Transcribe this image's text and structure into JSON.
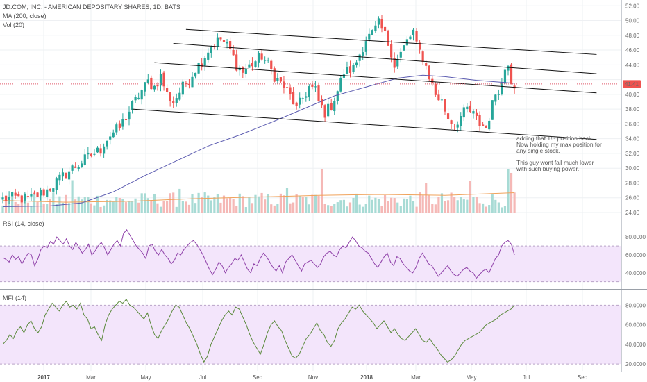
{
  "colors": {
    "up": "#26a69a",
    "down": "#ef5350",
    "ma": "#5b5bb0",
    "vol_ma": "#f0a25a",
    "rsi_line": "#8e3fa8",
    "rsi_band": "#f3e5fb",
    "mfi_line": "#5b8a3c",
    "mfi_band": "#f3e5fb",
    "grid": "#eef0f3",
    "channel": "#111111",
    "price_line": "#e0576a",
    "price_badge": "#ef5350"
  },
  "chart_data": [
    {
      "type": "candlestick",
      "name": "price-pane",
      "title": "JD.COM, INC. - AMERICAN DEPOSITARY SHARES, 1D, BATS",
      "indicators": [
        "MA (200, close)",
        "Vol (20)"
      ],
      "y_axis_side": "right",
      "ylim": [
        24,
        52.4
      ],
      "yticks": [
        "24.00",
        "26.00",
        "28.00",
        "30.00",
        "32.00",
        "34.00",
        "36.00",
        "38.00",
        "40.00",
        "42.00",
        "44.00",
        "46.00",
        "48.00",
        "50.00",
        "52.00"
      ],
      "last_price_label": "41.41",
      "last_price": 41.41,
      "xtick_labels": [
        "2017",
        "Mar",
        "May",
        "Jul",
        "Sep",
        "Nov",
        "2018",
        "Mar",
        "May",
        "Jul",
        "Sep"
      ],
      "xtick_bold": [
        "2017",
        "2018"
      ],
      "price_path": [
        [
          0,
          25.8
        ],
        [
          4,
          26.0
        ],
        [
          8,
          25.8
        ],
        [
          14,
          27.0
        ],
        [
          18,
          28.5
        ],
        [
          22,
          30.0
        ],
        [
          24,
          30.5
        ],
        [
          26,
          31.2
        ],
        [
          28,
          31.8
        ],
        [
          31,
          32.5
        ],
        [
          32,
          33.5
        ],
        [
          34,
          34.5
        ],
        [
          37,
          35.5
        ],
        [
          39,
          37.0
        ],
        [
          41,
          38.5
        ],
        [
          44,
          40.5
        ],
        [
          46,
          41.7
        ],
        [
          48,
          41.0
        ],
        [
          50,
          42.5
        ],
        [
          52,
          40.0
        ],
        [
          54,
          39.0
        ],
        [
          57,
          41.0
        ],
        [
          59,
          42.0
        ],
        [
          61,
          43.5
        ],
        [
          63,
          44.5
        ],
        [
          65,
          46.0
        ],
        [
          67,
          47.0
        ],
        [
          69,
          47.5
        ],
        [
          70,
          47.0
        ],
        [
          72,
          46.0
        ],
        [
          74,
          44.0
        ],
        [
          76,
          43.0
        ],
        [
          78,
          43.8
        ],
        [
          80,
          44.5
        ],
        [
          82,
          45.2
        ],
        [
          84,
          44.0
        ],
        [
          86,
          42.5
        ],
        [
          88,
          41.5
        ],
        [
          90,
          40.5
        ],
        [
          92,
          39.0
        ],
        [
          93,
          38.0
        ],
        [
          95,
          39.5
        ],
        [
          97,
          41.0
        ],
        [
          99,
          40.5
        ],
        [
          100,
          39.0
        ],
        [
          102,
          37.5
        ],
        [
          104,
          38.5
        ],
        [
          106,
          40.5
        ],
        [
          108,
          43.0
        ],
        [
          111,
          43.5
        ],
        [
          113,
          45.5
        ],
        [
          115,
          47.5
        ],
        [
          117,
          48.2
        ],
        [
          119,
          49.5
        ],
        [
          121,
          48.0
        ],
        [
          123,
          45.8
        ],
        [
          124,
          44.0
        ],
        [
          126,
          45.5
        ],
        [
          128,
          47.2
        ],
        [
          130,
          48.5
        ],
        [
          131,
          46.5
        ],
        [
          133,
          45.0
        ],
        [
          135,
          42.5
        ],
        [
          137,
          40.0
        ],
        [
          139,
          39.0
        ],
        [
          141,
          36.8
        ],
        [
          143,
          36.0
        ],
        [
          145,
          37.0
        ],
        [
          147,
          38.0
        ],
        [
          149,
          37.2
        ],
        [
          151,
          36.0
        ],
        [
          153,
          35.5
        ],
        [
          154,
          37.0
        ],
        [
          156,
          40.2
        ],
        [
          158,
          41.5
        ],
        [
          159,
          43.5
        ],
        [
          160,
          44.5
        ],
        [
          161,
          42.0
        ],
        [
          162,
          41.41
        ]
      ],
      "ma200_path": [
        [
          0,
          24.8
        ],
        [
          15,
          24.9
        ],
        [
          25,
          25.3
        ],
        [
          35,
          26.8
        ],
        [
          45,
          29.0
        ],
        [
          55,
          31.0
        ],
        [
          65,
          33.0
        ],
        [
          75,
          34.5
        ],
        [
          85,
          36.2
        ],
        [
          95,
          38.0
        ],
        [
          105,
          39.8
        ],
        [
          115,
          41.0
        ],
        [
          125,
          42.2
        ],
        [
          133,
          42.6
        ],
        [
          140,
          42.4
        ],
        [
          150,
          41.9
        ],
        [
          162,
          41.5
        ]
      ],
      "channel_lines": [
        [
          [
            58,
            48.8
          ],
          [
            188,
            45.4
          ]
        ],
        [
          [
            54,
            46.9
          ],
          [
            188,
            42.8
          ]
        ],
        [
          [
            48,
            44.3
          ],
          [
            188,
            40.2
          ]
        ],
        [
          [
            41,
            38.0
          ],
          [
            188,
            33.9
          ]
        ]
      ],
      "volume_scale_max": 30,
      "volume_ma_path": [
        [
          0,
          0.28
        ],
        [
          20,
          0.24
        ],
        [
          40,
          0.26
        ],
        [
          60,
          0.32
        ],
        [
          80,
          0.36
        ],
        [
          100,
          0.4
        ],
        [
          120,
          0.42
        ],
        [
          140,
          0.4
        ],
        [
          162,
          0.46
        ]
      ],
      "volume_spikes": [
        [
          22,
          0.75
        ],
        [
          56,
          0.55
        ],
        [
          90,
          0.58
        ],
        [
          101,
          1.0
        ],
        [
          134,
          0.68
        ],
        [
          148,
          0.74
        ],
        [
          160,
          1.0
        ],
        [
          161,
          0.92
        ]
      ],
      "annotation_lines": [
        "adding that 1/3 position back.",
        "Now holding my max position for",
        "any single stock.",
        "",
        "This guy wont fall much lower",
        "with such buying power."
      ]
    },
    {
      "type": "line",
      "name": "rsi-pane",
      "title": "RSI (14, close)",
      "ylim": [
        22,
        98
      ],
      "band": [
        30,
        70
      ],
      "yticks": [
        "40.0000",
        "60.0000",
        "80.0000"
      ],
      "values": [
        57,
        55,
        52,
        60,
        55,
        58,
        50,
        56,
        62,
        60,
        48,
        55,
        66,
        70,
        68,
        75,
        72,
        80,
        76,
        72,
        78,
        70,
        66,
        74,
        68,
        62,
        66,
        72,
        60,
        64,
        70,
        74,
        68,
        60,
        66,
        72,
        76,
        70,
        84,
        88,
        82,
        76,
        70,
        66,
        62,
        56,
        70,
        72,
        64,
        60,
        66,
        60,
        56,
        50,
        54,
        62,
        60,
        66,
        70,
        74,
        76,
        72,
        66,
        60,
        52,
        44,
        38,
        44,
        52,
        48,
        40,
        46,
        50,
        56,
        54,
        60,
        52,
        44,
        40,
        50,
        48,
        56,
        62,
        58,
        52,
        46,
        42,
        48,
        40,
        52,
        56,
        60,
        54,
        48,
        42,
        50,
        52,
        54,
        50,
        46,
        50,
        58,
        62,
        64,
        60,
        58,
        66,
        70,
        68,
        74,
        80,
        76,
        70,
        68,
        64,
        62,
        56,
        50,
        46,
        52,
        58,
        62,
        52,
        48,
        58,
        56,
        50,
        46,
        42,
        40,
        46,
        56,
        62,
        56,
        50,
        48,
        42,
        36,
        40,
        44,
        48,
        42,
        38,
        36,
        40,
        44,
        46,
        42,
        40,
        34,
        38,
        42,
        44,
        40,
        48,
        56,
        60,
        70,
        74,
        76,
        72,
        60
      ]
    },
    {
      "type": "line",
      "name": "mfi-pane",
      "title": "MFI (14)",
      "ylim": [
        13,
        93
      ],
      "band": [
        20,
        80
      ],
      "yticks": [
        "20.0000",
        "40.0000",
        "60.0000",
        "80.0000"
      ],
      "values": [
        40,
        44,
        50,
        46,
        54,
        58,
        52,
        60,
        64,
        56,
        52,
        58,
        70,
        76,
        82,
        78,
        74,
        80,
        84,
        78,
        80,
        76,
        82,
        70,
        66,
        56,
        58,
        50,
        44,
        60,
        70,
        76,
        80,
        84,
        82,
        86,
        80,
        78,
        74,
        70,
        66,
        72,
        60,
        50,
        46,
        54,
        60,
        66,
        74,
        80,
        78,
        70,
        62,
        56,
        48,
        40,
        30,
        22,
        28,
        40,
        48,
        56,
        64,
        70,
        74,
        70,
        78,
        76,
        68,
        60,
        50,
        42,
        36,
        30,
        40,
        52,
        60,
        64,
        58,
        54,
        44,
        36,
        28,
        26,
        30,
        38,
        46,
        50,
        56,
        62,
        54,
        50,
        42,
        38,
        44,
        56,
        62,
        66,
        72,
        78,
        76,
        80,
        74,
        70,
        66,
        62,
        56,
        60,
        64,
        58,
        52,
        56,
        50,
        46,
        44,
        48,
        52,
        56,
        50,
        44,
        42,
        46,
        40,
        36,
        30,
        26,
        22,
        24,
        28,
        34,
        40,
        44,
        46,
        48,
        50,
        52,
        56,
        60,
        62,
        64,
        66,
        70,
        72,
        74,
        76,
        80
      ]
    }
  ]
}
